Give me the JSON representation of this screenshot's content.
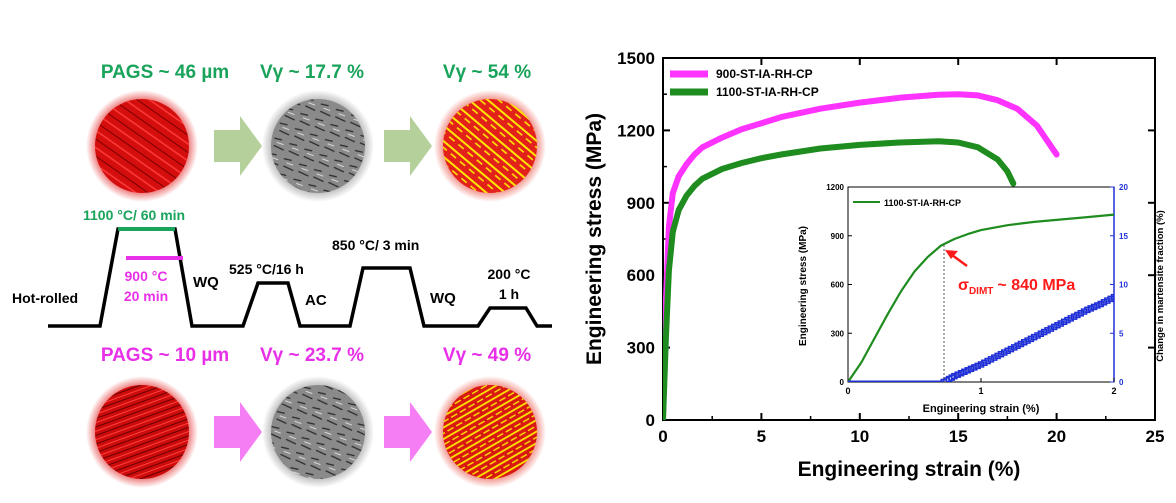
{
  "left_panel": {
    "top_row": [
      {
        "label": "PAGS ~ 46 µm",
        "color": "#19a35b"
      },
      {
        "label": "Vγ ~ 17.7 %",
        "color": "#19a35b"
      },
      {
        "label": "Vγ ~ 54 %",
        "color": "#19a35b"
      }
    ],
    "bottom_row": [
      {
        "label": "PAGS ~ 10 µm",
        "color": "#e830e8"
      },
      {
        "label": "Vγ ~ 23.7 %",
        "color": "#e830e8"
      },
      {
        "label": "Vγ ~ 49 %",
        "color": "#e830e8"
      }
    ],
    "schedule": {
      "hot_rolled": "Hot-rolled",
      "t1100": "1100 °C/ 60 min",
      "t900_a": "900 °C",
      "t900_b": "20 min",
      "wq1": "WQ",
      "t525": "525 °C/16 h",
      "ac": "AC",
      "t850": "850 °C/ 3 min",
      "wq2": "WQ",
      "t200_a": "200 °C",
      "t200_b": "1 h"
    },
    "colors": {
      "green": "#19a35b",
      "magenta": "#e830e8",
      "arrow_green": "#b5d09a",
      "arrow_pink": "#f57ef5"
    }
  },
  "chart_data": [
    {
      "type": "line",
      "xlabel": "Engineering strain (%)",
      "ylabel": "Engineering stress (MPa)",
      "xlim": [
        0,
        25
      ],
      "ylim": [
        0,
        1500
      ],
      "xticks": [
        "0",
        "5",
        "10",
        "15",
        "20",
        "25"
      ],
      "yticks": [
        "0",
        "300",
        "600",
        "900",
        "1200",
        "1500"
      ],
      "legend": "top-left",
      "series": [
        {
          "name": "900-ST-IA-RH-CP",
          "color": "#ff33ff",
          "x": [
            0,
            0.15,
            0.3,
            0.5,
            0.8,
            1.2,
            1.6,
            2,
            3,
            4,
            5,
            6,
            8,
            10,
            12,
            14,
            15,
            16,
            17,
            18,
            19,
            20
          ],
          "y": [
            0,
            500,
            800,
            940,
            1010,
            1060,
            1100,
            1130,
            1170,
            1205,
            1230,
            1255,
            1290,
            1315,
            1335,
            1348,
            1350,
            1345,
            1325,
            1290,
            1220,
            1100
          ]
        },
        {
          "name": "1100-ST-IA-RH-CP",
          "color": "#1e8c1e",
          "x": [
            0,
            0.15,
            0.3,
            0.5,
            0.8,
            1.2,
            1.6,
            2,
            3,
            4,
            5,
            6,
            8,
            10,
            12,
            14,
            15,
            16,
            17,
            17.5,
            17.8
          ],
          "y": [
            0,
            350,
            620,
            780,
            870,
            930,
            970,
            1000,
            1040,
            1065,
            1085,
            1100,
            1125,
            1140,
            1150,
            1155,
            1150,
            1130,
            1080,
            1030,
            980
          ]
        }
      ]
    },
    {
      "type": "line",
      "xlabel": "Engineering strain (%)",
      "ylabel": "Engineering stress (MPa)",
      "y2label": "Change in martensite fraction (%)",
      "xlim": [
        0,
        2
      ],
      "ylim": [
        0,
        1200
      ],
      "y2lim": [
        0,
        20
      ],
      "xticks": [
        "0",
        "1",
        "2"
      ],
      "yticks": [
        "0",
        "300",
        "600",
        "900",
        "1200"
      ],
      "y2ticks": [
        "0",
        "5",
        "10",
        "15",
        "20"
      ],
      "series": [
        {
          "name": "1100-ST-IA-RH-CP",
          "color": "#1e8c1e",
          "x": [
            0,
            0.1,
            0.2,
            0.3,
            0.4,
            0.5,
            0.6,
            0.7,
            0.8,
            0.9,
            1.0,
            1.2,
            1.4,
            1.6,
            1.8,
            2.0
          ],
          "y": [
            0,
            120,
            270,
            420,
            560,
            680,
            770,
            840,
            880,
            910,
            935,
            965,
            985,
            1000,
            1015,
            1030
          ]
        },
        {
          "color": "#1f2fd6",
          "axis": "right",
          "x": [
            0,
            0.72,
            0.8,
            0.9,
            1.0,
            1.1,
            1.2,
            1.3,
            1.4,
            1.5,
            1.6,
            1.7,
            1.8,
            1.9,
            2.0
          ],
          "y": [
            0,
            0,
            0.6,
            1.2,
            1.8,
            2.5,
            3.2,
            3.9,
            4.6,
            5.3,
            6.0,
            6.7,
            7.4,
            8.0,
            8.7
          ]
        }
      ],
      "annotation": {
        "symbol": "σ",
        "subscript": "DIMT",
        "text": "~ 840 MPa",
        "x": 0.72,
        "y": 840
      }
    }
  ]
}
